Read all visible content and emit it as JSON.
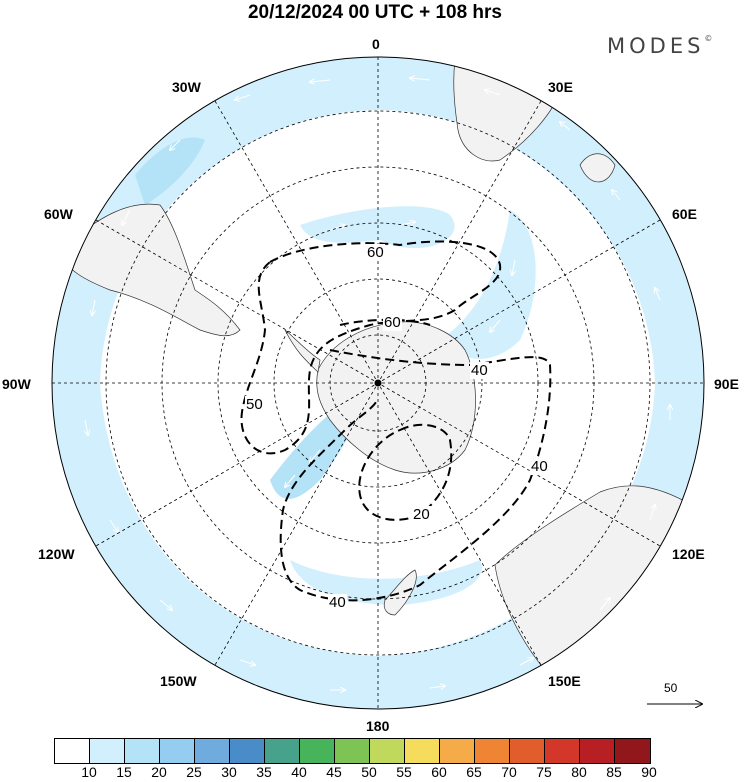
{
  "title": "20/12/2024  00 UTC  + 108 hrs",
  "brand": "MODES",
  "brand_mark": "©",
  "longitude_labels": {
    "lon_0": "0",
    "lon_30e": "30E",
    "lon_60e": "60E",
    "lon_90e": "90E",
    "lon_120e": "120E",
    "lon_150e": "150E",
    "lon_180": "180",
    "lon_150w": "150W",
    "lon_120w": "120W",
    "lon_90w": "90W",
    "lon_60w": "60W",
    "lon_30w": "30W"
  },
  "contours": {
    "c60a": "60",
    "c60b": "60",
    "c50": "50",
    "c40a": "40",
    "c40b": "40",
    "c40c": "40",
    "c20": "20"
  },
  "vector_scale": "50",
  "legend": {
    "colors": [
      "#ffffff",
      "#d2effd",
      "#b4e2f7",
      "#94cdef",
      "#6fabdc",
      "#4a8cc8",
      "#47a28b",
      "#47b35a",
      "#7dc455",
      "#c0d85c",
      "#f6dc5c",
      "#f4ab48",
      "#ef8435",
      "#e25d2c",
      "#d3372a",
      "#b71f25",
      "#91171d"
    ],
    "ticks": [
      "10",
      "15",
      "20",
      "25",
      "30",
      "35",
      "40",
      "45",
      "50",
      "55",
      "60",
      "65",
      "70",
      "75",
      "80",
      "85",
      "90"
    ]
  },
  "colors": {
    "land": "#f2f2f2",
    "jet_light": "#d2effd",
    "jet_medium": "#b4e2f7"
  }
}
